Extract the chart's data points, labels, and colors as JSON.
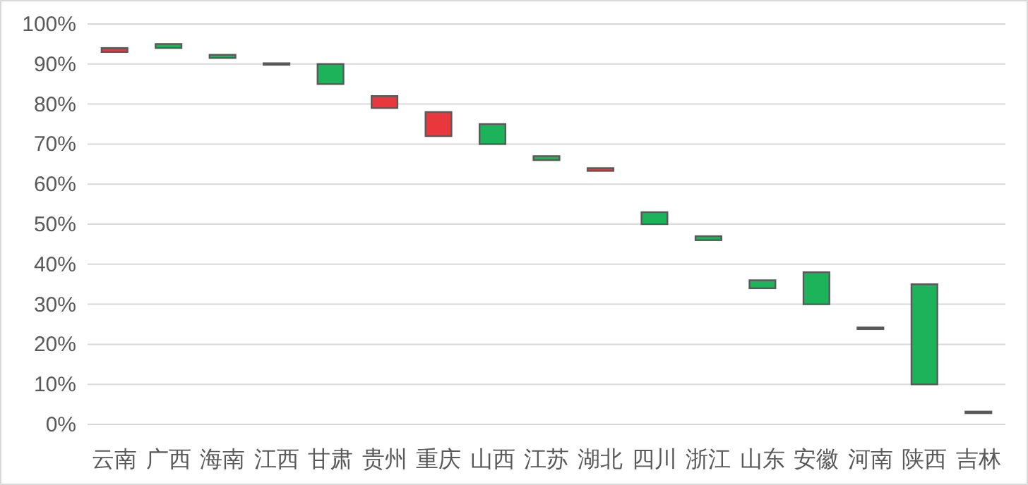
{
  "chart_data": {
    "type": "bar",
    "categories": [
      "云南",
      "广西",
      "海南",
      "江西",
      "甘肃",
      "贵州",
      "重庆",
      "山西",
      "江苏",
      "湖北",
      "四川",
      "浙江",
      "山东",
      "安徽",
      "河南",
      "陕西",
      "吉林"
    ],
    "base": [
      93,
      94,
      91.5,
      89.8,
      85,
      79,
      72,
      70,
      66,
      63.3,
      50,
      46,
      34,
      30,
      23.8,
      10,
      2.8
    ],
    "values": [
      1,
      1,
      0.8,
      0.4,
      5,
      3,
      6,
      5,
      1,
      0.7,
      3,
      1,
      2,
      8,
      0.4,
      25,
      0.4
    ],
    "colors": [
      "#e8383d",
      "#1cb35a",
      "#1cb35a",
      "#1cb35a",
      "#1cb35a",
      "#e8383d",
      "#e8383d",
      "#1cb35a",
      "#1cb35a",
      "#e8383d",
      "#1cb35a",
      "#1cb35a",
      "#1cb35a",
      "#1cb35a",
      "#1cb35a",
      "#1cb35a",
      "#595959"
    ],
    "ylim": [
      0,
      100
    ],
    "yticks": [
      {
        "value": 0,
        "label": "0%"
      },
      {
        "value": 10,
        "label": "10%"
      },
      {
        "value": 20,
        "label": "20%"
      },
      {
        "value": 30,
        "label": "30%"
      },
      {
        "value": 40,
        "label": "40%"
      },
      {
        "value": 50,
        "label": "50%"
      },
      {
        "value": 60,
        "label": "60%"
      },
      {
        "value": 70,
        "label": "70%"
      },
      {
        "value": 80,
        "label": "80%"
      },
      {
        "value": 90,
        "label": "90%"
      },
      {
        "value": 100,
        "label": "100%"
      }
    ],
    "grid": "y"
  }
}
